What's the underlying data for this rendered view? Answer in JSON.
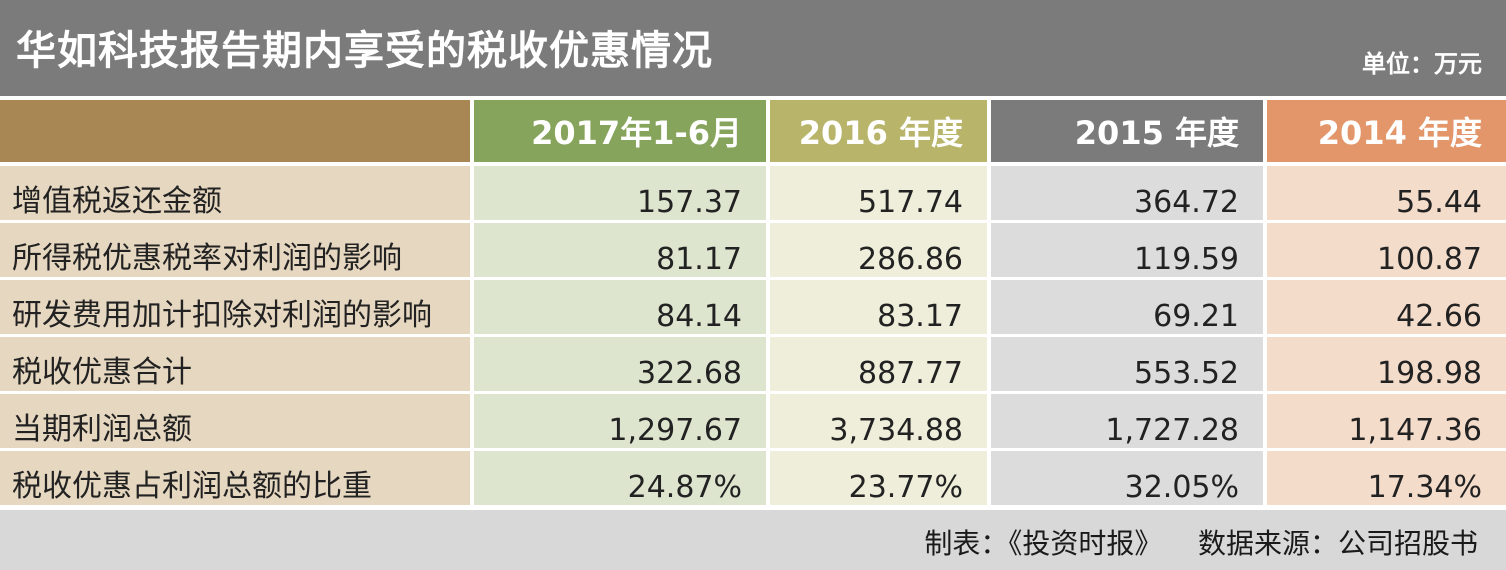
{
  "title": "华如科技报告期内享受的税收优惠情况",
  "unit": "单位：万元",
  "columns": [
    {
      "label": "2017年1-6月",
      "header_color": "#87a45c",
      "cell_color": "#dde5cf"
    },
    {
      "label": "2016 年度",
      "header_color": "#b8b46a",
      "cell_color": "#eeeedb"
    },
    {
      "label": "2015 年度",
      "header_color": "#7b7b7b",
      "cell_color": "#dcdcdc"
    },
    {
      "label": "2014 年度",
      "header_color": "#e3966a",
      "cell_color": "#f4dccb"
    }
  ],
  "rows": [
    {
      "label": "增值税返还金额",
      "values": [
        "157.37",
        "517.74",
        "364.72",
        "55.44"
      ]
    },
    {
      "label": "所得税优惠税率对利润的影响",
      "values": [
        "81.17",
        "286.86",
        "119.59",
        "100.87"
      ]
    },
    {
      "label": "研发费用加计扣除对利润的影响",
      "values": [
        "84.14",
        "83.17",
        "69.21",
        "42.66"
      ]
    },
    {
      "label": "税收优惠合计",
      "values": [
        "322.68",
        "887.77",
        "553.52",
        "198.98"
      ]
    },
    {
      "label": "当期利润总额",
      "values": [
        "1,297.67",
        "3,734.88",
        "1,727.28",
        "1,147.36"
      ]
    },
    {
      "label": "税收优惠占利润总额的比重",
      "values": [
        "24.87%",
        "23.77%",
        "32.05%",
        "17.34%"
      ]
    }
  ],
  "footer": {
    "maker": "制表：《投资时报》",
    "source": "数据来源：公司招股书"
  }
}
